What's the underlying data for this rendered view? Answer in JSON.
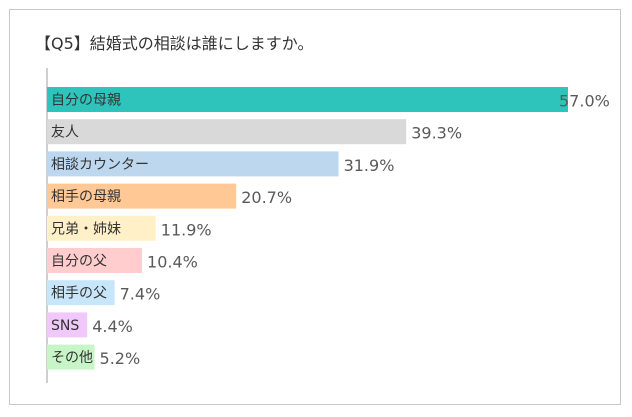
{
  "chart_data": {
    "type": "bar",
    "orientation": "horizontal",
    "title": "【Q5】結婚式の相談は誰にしますか。",
    "xlim": [
      0,
      57
    ],
    "grid": false,
    "legend": "none",
    "categories": [
      "自分の母親",
      "友人",
      "相談カウンター",
      "相手の母親",
      "兄弟・姉妹",
      "自分の父",
      "相手の父",
      "SNS",
      "その他"
    ],
    "values": [
      57.0,
      39.3,
      31.9,
      20.7,
      11.9,
      10.4,
      7.4,
      4.4,
      5.2
    ],
    "value_labels": [
      "57.0%",
      "39.3%",
      "31.9%",
      "20.7%",
      "11.9%",
      "10.4%",
      "7.4%",
      "4.4%",
      "5.2%"
    ],
    "colors": [
      "#2ec4bc",
      "#d9d9d9",
      "#bdd7ee",
      "#ffc894",
      "#fff0c8",
      "#ffcdcd",
      "#c8e6fa",
      "#f0c8fa",
      "#c8f5c8"
    ]
  }
}
